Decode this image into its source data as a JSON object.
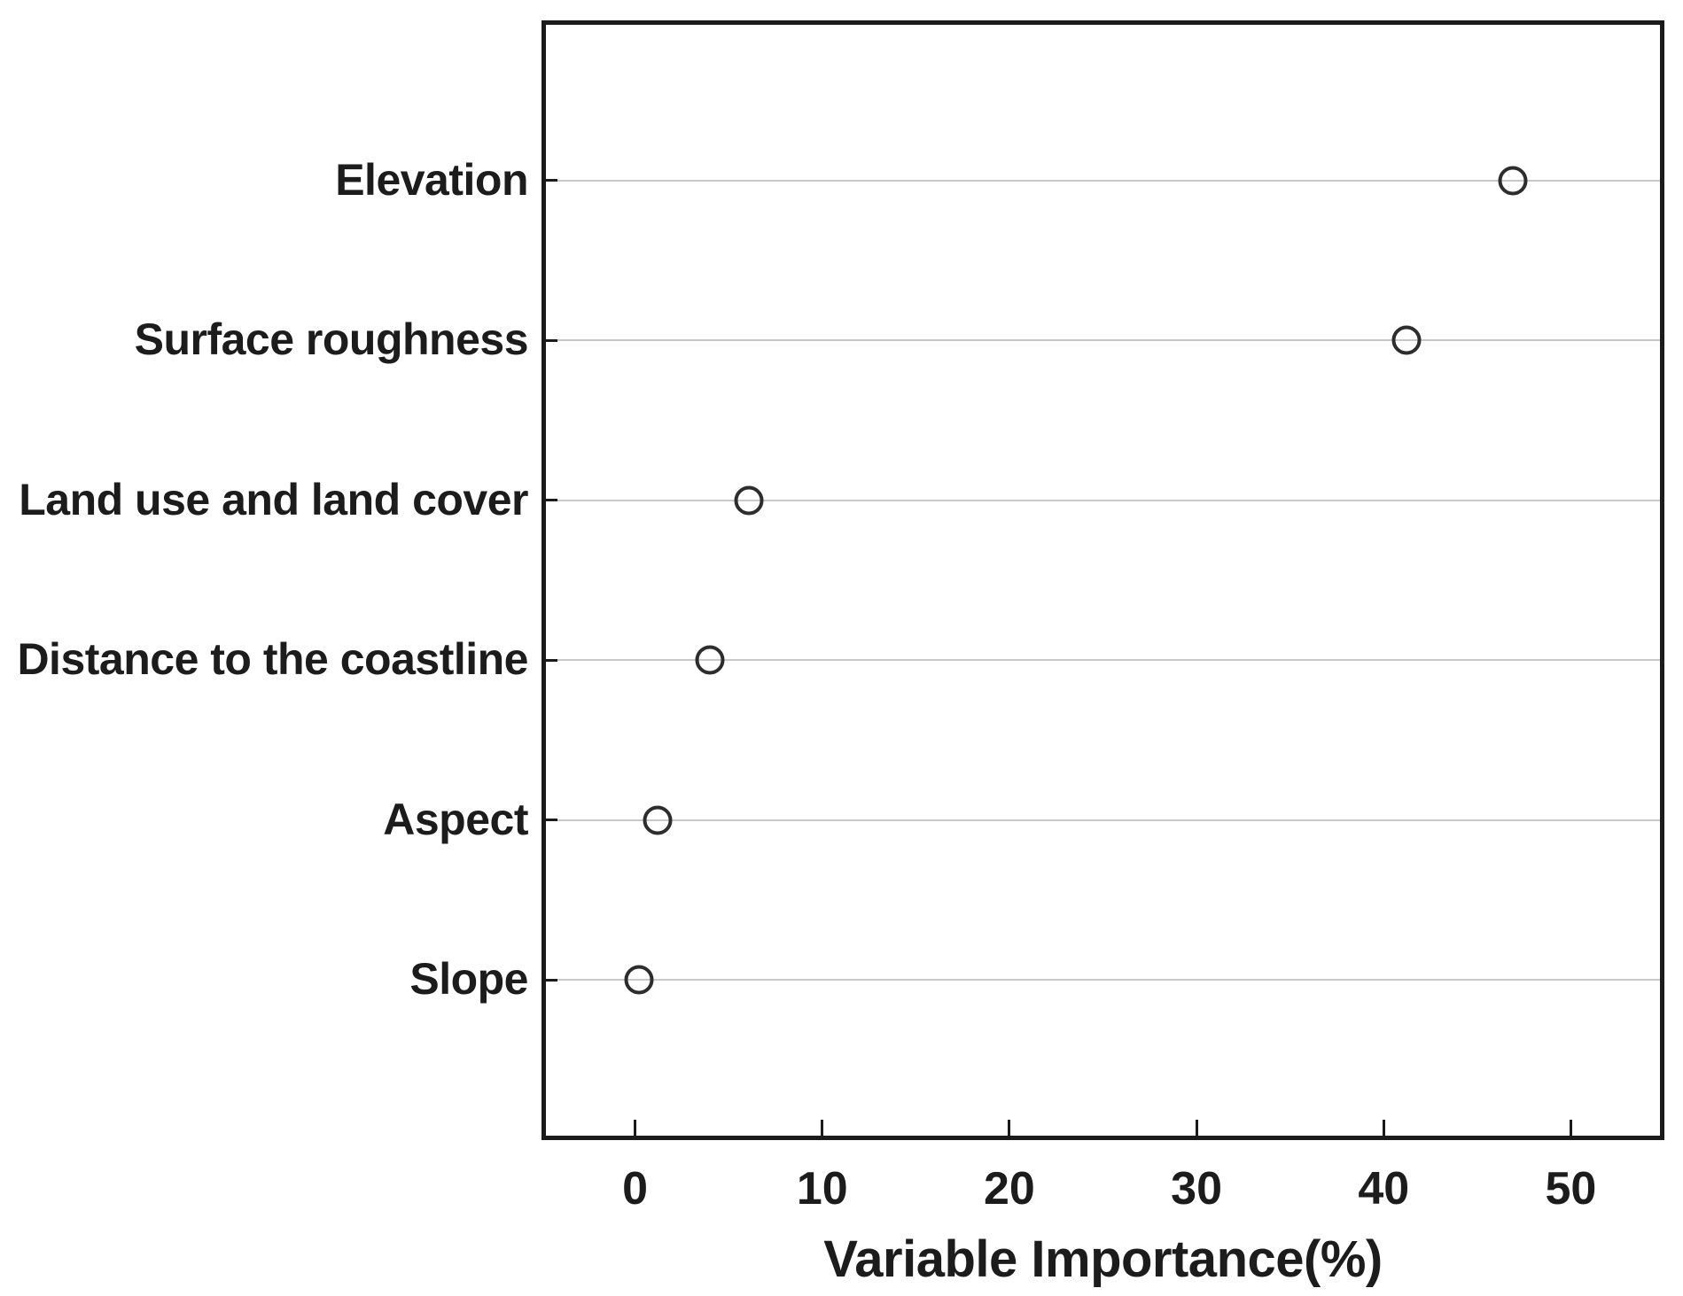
{
  "chart_data": {
    "type": "scatter",
    "subtype": "dot-plot",
    "orientation": "horizontal",
    "title": "",
    "xlabel": "Variable Importance(%)",
    "ylabel": "",
    "categories": [
      "Elevation",
      "Surface roughness",
      "Land use and land cover",
      "Distance to the coastline",
      "Aspect",
      "Slope"
    ],
    "values": [
      46.9,
      41.2,
      6.1,
      4.0,
      1.2,
      0.2
    ],
    "x_ticks": [
      0,
      10,
      20,
      30,
      40,
      50
    ],
    "xlim": [
      -5,
      55
    ],
    "grid": "horizontal gridline at each category row",
    "legend": "none",
    "marker": "open-circle"
  },
  "style": {
    "background_color": "#ffffff",
    "frame_color": "#1b1b1b",
    "grid_color": "#c9c9c9",
    "marker_stroke_color": "#2d2d2d",
    "text_color": "#1c1c1c"
  }
}
